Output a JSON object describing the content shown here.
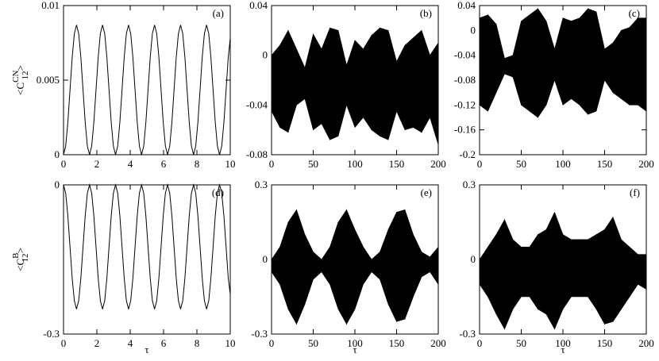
{
  "chart_data": [
    {
      "type": "line",
      "annotation": "(a)",
      "ylabel": {
        "open": "<C",
        "sup": "CN",
        "sub": "12",
        "close": ">"
      },
      "xlim": [
        0,
        10
      ],
      "ylim": [
        0,
        0.01
      ],
      "xticks": [
        0,
        2,
        4,
        6,
        8,
        10
      ],
      "yticks": [
        0,
        0.005,
        0.01
      ],
      "x": [
        0,
        0.13,
        0.26,
        0.39,
        0.52,
        0.65,
        0.78,
        0.91,
        1.04,
        1.17,
        1.3,
        1.43,
        1.56,
        1.69,
        1.82,
        1.95,
        2.08,
        2.21,
        2.34,
        2.47,
        2.6,
        2.73,
        2.86,
        2.99,
        3.12,
        3.25,
        3.38,
        3.51,
        3.64,
        3.77,
        3.9,
        4.03,
        4.16,
        4.29,
        4.42,
        4.55,
        4.68,
        4.81,
        4.94,
        5.07,
        5.2,
        5.33,
        5.46,
        5.59,
        5.72,
        5.85,
        5.98,
        6.11,
        6.24,
        6.37,
        6.5,
        6.63,
        6.76,
        6.89,
        7.02,
        7.15,
        7.28,
        7.41,
        7.54,
        7.67,
        7.8,
        7.93,
        8.06,
        8.19,
        8.32,
        8.45,
        8.58,
        8.71,
        8.84,
        8.97,
        9.1,
        9.23,
        9.36,
        9.49,
        9.62,
        9.75,
        9.88,
        10
      ],
      "values": [
        0,
        0.00058,
        0.00218,
        0.00435,
        0.00653,
        0.00812,
        0.0087,
        0.00812,
        0.00653,
        0.00435,
        0.00218,
        0.00058,
        0,
        0.00058,
        0.00218,
        0.00435,
        0.00653,
        0.00812,
        0.0087,
        0.00812,
        0.00653,
        0.00435,
        0.00218,
        0.00058,
        0,
        0.00058,
        0.00218,
        0.00435,
        0.00653,
        0.00812,
        0.0087,
        0.00812,
        0.00653,
        0.00435,
        0.00218,
        0.00058,
        0,
        0.00058,
        0.00218,
        0.00435,
        0.00653,
        0.00812,
        0.0087,
        0.00812,
        0.00653,
        0.00435,
        0.00218,
        0.00058,
        0,
        0.00058,
        0.00218,
        0.00435,
        0.00653,
        0.00812,
        0.0087,
        0.00812,
        0.00653,
        0.00435,
        0.00218,
        0.00058,
        0,
        0.00058,
        0.00218,
        0.00435,
        0.00653,
        0.00812,
        0.0087,
        0.00812,
        0.00653,
        0.00435,
        0.00218,
        0.00058,
        0,
        0.00058,
        0.00218,
        0.00435,
        0.00653,
        0.0078
      ],
      "color": "#000000"
    },
    {
      "type": "band",
      "annotation": "(b)",
      "xlim": [
        0,
        200
      ],
      "ylim": [
        -0.08,
        0.04
      ],
      "xticks": [
        0,
        50,
        100,
        150,
        200
      ],
      "yticks": [
        -0.08,
        -0.04,
        0,
        0.04
      ],
      "x": [
        0,
        10,
        20,
        30,
        40,
        50,
        60,
        70,
        80,
        90,
        100,
        110,
        120,
        130,
        140,
        150,
        160,
        170,
        180,
        190,
        200
      ],
      "upper": [
        0.0,
        0.008,
        0.02,
        0.005,
        -0.01,
        0.017,
        0.005,
        0.022,
        0.02,
        -0.008,
        0.012,
        0.005,
        0.016,
        0.022,
        0.02,
        -0.005,
        0.008,
        0.014,
        0.02,
        0.0,
        0.01
      ],
      "lower": [
        -0.045,
        -0.058,
        -0.062,
        -0.04,
        -0.035,
        -0.06,
        -0.055,
        -0.068,
        -0.065,
        -0.04,
        -0.058,
        -0.05,
        -0.06,
        -0.065,
        -0.068,
        -0.045,
        -0.06,
        -0.058,
        -0.062,
        -0.05,
        -0.072
      ],
      "color": "#000000"
    },
    {
      "type": "band",
      "annotation": "(c)",
      "xlim": [
        0,
        200
      ],
      "ylim": [
        -0.2,
        0.04
      ],
      "xticks": [
        0,
        50,
        100,
        150,
        200
      ],
      "yticks": [
        -0.2,
        -0.16,
        -0.12,
        -0.08,
        -0.04,
        0,
        0.04
      ],
      "x": [
        0,
        10,
        20,
        30,
        40,
        50,
        60,
        70,
        80,
        90,
        100,
        110,
        120,
        130,
        140,
        150,
        160,
        170,
        180,
        190,
        200
      ],
      "upper": [
        0.02,
        0.025,
        0.01,
        -0.045,
        -0.04,
        0.015,
        0.025,
        0.035,
        0.015,
        -0.03,
        0.02,
        0.015,
        0.02,
        0.035,
        0.03,
        -0.03,
        -0.02,
        0.0,
        0.005,
        0.02,
        0.02
      ],
      "lower": [
        -0.12,
        -0.13,
        -0.1,
        -0.07,
        -0.075,
        -0.12,
        -0.13,
        -0.14,
        -0.12,
        -0.08,
        -0.12,
        -0.11,
        -0.12,
        -0.135,
        -0.13,
        -0.08,
        -0.1,
        -0.11,
        -0.12,
        -0.12,
        -0.13
      ],
      "color": "#000000"
    },
    {
      "type": "line",
      "annotation": "(d)",
      "ylabel": {
        "open": "<C",
        "sup": "B",
        "sub": "12",
        "close": ">"
      },
      "xlabel": "τ",
      "xlim": [
        0,
        10
      ],
      "ylim": [
        -0.3,
        0
      ],
      "xticks": [
        0,
        2,
        4,
        6,
        8,
        10
      ],
      "yticks": [
        -0.3,
        0
      ],
      "x": [
        0,
        0.13,
        0.26,
        0.39,
        0.52,
        0.65,
        0.78,
        0.91,
        1.04,
        1.17,
        1.3,
        1.43,
        1.56,
        1.69,
        1.82,
        1.95,
        2.08,
        2.21,
        2.34,
        2.47,
        2.6,
        2.73,
        2.86,
        2.99,
        3.12,
        3.25,
        3.38,
        3.51,
        3.64,
        3.77,
        3.9,
        4.03,
        4.16,
        4.29,
        4.42,
        4.55,
        4.68,
        4.81,
        4.94,
        5.07,
        5.2,
        5.33,
        5.46,
        5.59,
        5.72,
        5.85,
        5.98,
        6.11,
        6.24,
        6.37,
        6.5,
        6.63,
        6.76,
        6.89,
        7.02,
        7.15,
        7.28,
        7.41,
        7.54,
        7.67,
        7.8,
        7.93,
        8.06,
        8.19,
        8.32,
        8.45,
        8.58,
        8.71,
        8.84,
        8.97,
        9.1,
        9.23,
        9.36,
        9.49,
        9.62,
        9.75,
        9.88,
        10
      ],
      "values": [
        0,
        -0.0167,
        -0.0625,
        -0.125,
        -0.1875,
        -0.233,
        -0.25,
        -0.233,
        -0.1875,
        -0.125,
        -0.0625,
        -0.0167,
        0,
        -0.0167,
        -0.0625,
        -0.125,
        -0.1875,
        -0.233,
        -0.25,
        -0.233,
        -0.1875,
        -0.125,
        -0.0625,
        -0.0167,
        0,
        -0.0167,
        -0.0625,
        -0.125,
        -0.1875,
        -0.233,
        -0.25,
        -0.233,
        -0.1875,
        -0.125,
        -0.0625,
        -0.0167,
        0,
        -0.0167,
        -0.0625,
        -0.125,
        -0.1875,
        -0.233,
        -0.25,
        -0.233,
        -0.1875,
        -0.125,
        -0.0625,
        -0.0167,
        0,
        -0.0167,
        -0.0625,
        -0.125,
        -0.1875,
        -0.233,
        -0.25,
        -0.233,
        -0.1875,
        -0.125,
        -0.0625,
        -0.0167,
        0,
        -0.0167,
        -0.0625,
        -0.125,
        -0.1875,
        -0.233,
        -0.25,
        -0.233,
        -0.1875,
        -0.125,
        -0.0625,
        -0.0167,
        0,
        -0.0167,
        -0.0625,
        -0.125,
        -0.1875,
        -0.22
      ],
      "color": "#000000"
    },
    {
      "type": "band",
      "annotation": "(e)",
      "xlabel": "τ",
      "xlim": [
        0,
        200
      ],
      "ylim": [
        -0.3,
        0.3
      ],
      "xticks": [
        0,
        50,
        100,
        150,
        200
      ],
      "yticks": [
        -0.3,
        0,
        0.3
      ],
      "x": [
        0,
        10,
        20,
        30,
        40,
        50,
        60,
        70,
        80,
        90,
        100,
        110,
        120,
        130,
        140,
        150,
        160,
        170,
        180,
        190,
        200
      ],
      "upper": [
        0.0,
        0.05,
        0.15,
        0.2,
        0.1,
        0.03,
        0.0,
        0.05,
        0.15,
        0.2,
        0.12,
        0.05,
        0.0,
        0.03,
        0.12,
        0.19,
        0.2,
        0.1,
        0.03,
        0.01,
        0.05
      ],
      "lower": [
        -0.05,
        -0.1,
        -0.2,
        -0.26,
        -0.18,
        -0.08,
        -0.05,
        -0.1,
        -0.2,
        -0.26,
        -0.2,
        -0.1,
        -0.05,
        -0.08,
        -0.18,
        -0.25,
        -0.24,
        -0.15,
        -0.07,
        -0.05,
        -0.1
      ],
      "color": "#000000"
    },
    {
      "type": "band",
      "annotation": "(f)",
      "xlabel": "τ",
      "xlim": [
        0,
        200
      ],
      "ylim": [
        -0.3,
        0.3
      ],
      "xticks": [
        0,
        50,
        100,
        150,
        200
      ],
      "yticks": [
        -0.3,
        0,
        0.3
      ],
      "x": [
        0,
        10,
        20,
        30,
        40,
        50,
        60,
        70,
        80,
        90,
        100,
        110,
        120,
        130,
        140,
        150,
        160,
        170,
        180,
        190,
        200
      ],
      "upper": [
        0.0,
        0.05,
        0.1,
        0.16,
        0.08,
        0.05,
        0.05,
        0.1,
        0.12,
        0.19,
        0.1,
        0.08,
        0.08,
        0.08,
        0.1,
        0.12,
        0.17,
        0.08,
        0.05,
        0.02,
        0.02
      ],
      "lower": [
        -0.1,
        -0.15,
        -0.22,
        -0.28,
        -0.2,
        -0.15,
        -0.15,
        -0.2,
        -0.22,
        -0.28,
        -0.2,
        -0.15,
        -0.15,
        -0.15,
        -0.2,
        -0.26,
        -0.25,
        -0.2,
        -0.15,
        -0.1,
        -0.12
      ],
      "color": "#000000"
    }
  ]
}
